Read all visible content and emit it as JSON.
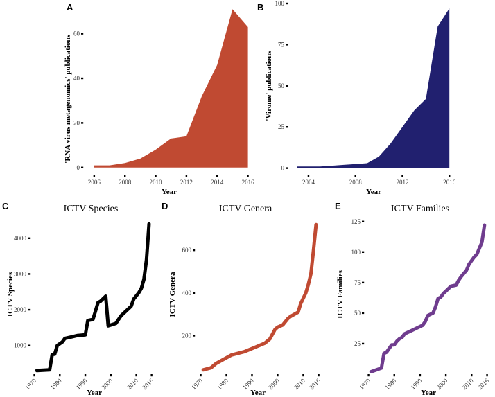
{
  "chart_data": [
    {
      "panel": "A",
      "type": "area",
      "title": "",
      "xlabel": "Year",
      "ylabel": "'RNA virus metagenomics' publications",
      "color": "#C04A32",
      "x": [
        2006,
        2007,
        2008,
        2009,
        2010,
        2011,
        2012,
        2013,
        2014,
        2015,
        2016
      ],
      "y": [
        1,
        1,
        2,
        4,
        8,
        13,
        14,
        32,
        46,
        71,
        63
      ],
      "xlim": [
        2005.6,
        2016.2
      ],
      "ylim": [
        -1,
        72
      ],
      "xticks": [
        2006,
        2008,
        2010,
        2012,
        2014,
        2016
      ],
      "xticklabels": [
        "2006",
        "2008",
        "2010",
        "2012",
        "2014",
        "2016"
      ],
      "yticks": [
        0,
        20,
        40,
        60
      ],
      "yticklabels": [
        "0",
        "20",
        "40",
        "60"
      ],
      "xtick_rotate": false
    },
    {
      "panel": "B",
      "type": "area",
      "title": "",
      "xlabel": "Year",
      "ylabel": "'Virome' publications",
      "color": "#21206F",
      "x": [
        2003,
        2004,
        2005,
        2006,
        2007,
        2008,
        2009,
        2010,
        2011,
        2012,
        2013,
        2014,
        2015,
        2016
      ],
      "y": [
        1,
        1,
        1,
        1.5,
        2,
        2.5,
        3,
        7,
        15,
        25,
        35,
        42,
        86,
        97
      ],
      "xlim": [
        2003,
        2016.4
      ],
      "ylim": [
        -1,
        100
      ],
      "xticks": [
        2004,
        2008,
        2012,
        2016
      ],
      "xticklabels": [
        "2004",
        "2008",
        "2012",
        "2016"
      ],
      "yticks": [
        0,
        25,
        50,
        75,
        100
      ],
      "yticklabels": [
        "0",
        "25",
        "50",
        "75",
        "100"
      ],
      "xtick_rotate": false
    },
    {
      "panel": "C",
      "type": "line",
      "title": "ICTV Species",
      "xlabel": "Year",
      "ylabel": "ICTV Species",
      "color": "#000000",
      "x": [
        1971,
        1976,
        1977,
        1978,
        1979,
        1980,
        1981,
        1982,
        1984,
        1987,
        1990,
        1991,
        1993,
        1995,
        1996,
        1998,
        1999,
        2002,
        2004,
        2008,
        2009,
        2011,
        2012,
        2013,
        2014,
        2015
      ],
      "y": [
        300,
        320,
        750,
        760,
        1000,
        1050,
        1100,
        1200,
        1230,
        1280,
        1300,
        1700,
        1730,
        2200,
        2240,
        2380,
        1550,
        1620,
        1830,
        2100,
        2300,
        2480,
        2600,
        2850,
        3400,
        4400
      ],
      "xlim": [
        1968.5,
        2018
      ],
      "ylim": [
        200,
        4500
      ],
      "xticks": [
        1970,
        1980,
        1990,
        2000,
        2010,
        2016
      ],
      "xticklabels": [
        "1970",
        "1980",
        "1990",
        "2000",
        "2010",
        "2016"
      ],
      "yticks": [
        1000,
        2000,
        3000,
        4000
      ],
      "yticklabels": [
        "1000",
        "2000",
        "3000",
        "4000"
      ],
      "xtick_rotate": true
    },
    {
      "panel": "D",
      "type": "line",
      "title": "ICTV Genera",
      "xlabel": "Year",
      "ylabel": "ICTV Genera",
      "color": "#C04A32",
      "x": [
        1971,
        1974,
        1976,
        1979,
        1982,
        1987,
        1991,
        1995,
        1997,
        1999,
        2000,
        2002,
        2004,
        2005,
        2008,
        2009,
        2011,
        2012,
        2013,
        2014,
        2015
      ],
      "y": [
        40,
        50,
        70,
        90,
        110,
        125,
        145,
        165,
        185,
        230,
        240,
        250,
        280,
        290,
        310,
        350,
        400,
        440,
        490,
        600,
        720
      ],
      "xlim": [
        1968.5,
        2018
      ],
      "ylim": [
        20,
        740
      ],
      "xticks": [
        1970,
        1980,
        1990,
        2000,
        2010,
        2016
      ],
      "xticklabels": [
        "1970",
        "1980",
        "1990",
        "2000",
        "2010",
        "2016"
      ],
      "yticks": [
        200,
        400,
        600
      ],
      "yticklabels": [
        "200",
        "400",
        "600"
      ],
      "xtick_rotate": true
    },
    {
      "panel": "E",
      "type": "line",
      "title": "ICTV Families",
      "xlabel": "Year",
      "ylabel": "ICTV Families",
      "color": "#6F3C8E",
      "x": [
        1971,
        1975,
        1976,
        1977,
        1978,
        1979,
        1980,
        1981,
        1982,
        1983,
        1984,
        1987,
        1990,
        1991,
        1992,
        1993,
        1995,
        1996,
        1997,
        1998,
        1999,
        2000,
        2002,
        2004,
        2005,
        2006,
        2008,
        2009,
        2010,
        2011,
        2012,
        2013,
        2014,
        2015
      ],
      "y": [
        2,
        5,
        17,
        18,
        21,
        24,
        24,
        27,
        29,
        30,
        33,
        36,
        39,
        40,
        43,
        48,
        50,
        55,
        62,
        63,
        66,
        68,
        72,
        73,
        77,
        80,
        85,
        90,
        93,
        96,
        98,
        103,
        108,
        122
      ],
      "xlim": [
        1968.5,
        2018
      ],
      "ylim": [
        0,
        126
      ],
      "xticks": [
        1970,
        1980,
        1990,
        2000,
        2010,
        2016
      ],
      "xticklabels": [
        "1970",
        "1980",
        "1990",
        "2000",
        "2010",
        "2016"
      ],
      "yticks": [
        25,
        50,
        75,
        100,
        125
      ],
      "yticklabels": [
        "25",
        "50",
        "75",
        "100",
        "125"
      ],
      "xtick_rotate": true
    }
  ]
}
